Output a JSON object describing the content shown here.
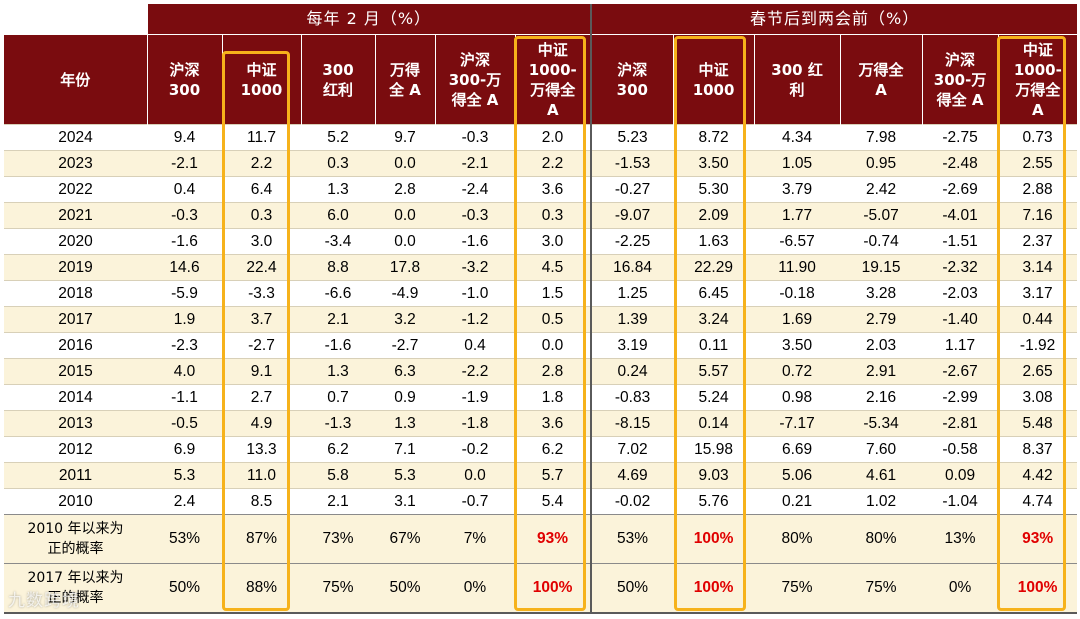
{
  "group_headers": {
    "feb": "每年 2 月（%）",
    "spring": "春节后到两会前（%）"
  },
  "year_header": "年份",
  "columns_feb": [
    "沪深\n300",
    "中证\n1000",
    "300\n红利",
    "万得\n全 A",
    "沪深\n300-万\n得全 A",
    "中证\n1000-\n万得全\nA"
  ],
  "columns_spring": [
    "沪深\n300",
    "中证\n1000",
    "300 红\n利",
    "万得全\nA",
    "沪深\n300-万\n得全 A",
    "中证\n1000-\n万得全\nA"
  ],
  "rows": [
    {
      "year": "2024",
      "feb": [
        "9.4",
        "11.7",
        "5.2",
        "9.7",
        "-0.3",
        "2.0"
      ],
      "spring": [
        "5.23",
        "8.72",
        "4.34",
        "7.98",
        "-2.75",
        "0.73"
      ]
    },
    {
      "year": "2023",
      "feb": [
        "-2.1",
        "2.2",
        "0.3",
        "0.0",
        "-2.1",
        "2.2"
      ],
      "spring": [
        "-1.53",
        "3.50",
        "1.05",
        "0.95",
        "-2.48",
        "2.55"
      ]
    },
    {
      "year": "2022",
      "feb": [
        "0.4",
        "6.4",
        "1.3",
        "2.8",
        "-2.4",
        "3.6"
      ],
      "spring": [
        "-0.27",
        "5.30",
        "3.79",
        "2.42",
        "-2.69",
        "2.88"
      ]
    },
    {
      "year": "2021",
      "feb": [
        "-0.3",
        "0.3",
        "6.0",
        "0.0",
        "-0.3",
        "0.3"
      ],
      "spring": [
        "-9.07",
        "2.09",
        "1.77",
        "-5.07",
        "-4.01",
        "7.16"
      ]
    },
    {
      "year": "2020",
      "feb": [
        "-1.6",
        "3.0",
        "-3.4",
        "0.0",
        "-1.6",
        "3.0"
      ],
      "spring": [
        "-2.25",
        "1.63",
        "-6.57",
        "-0.74",
        "-1.51",
        "2.37"
      ]
    },
    {
      "year": "2019",
      "feb": [
        "14.6",
        "22.4",
        "8.8",
        "17.8",
        "-3.2",
        "4.5"
      ],
      "spring": [
        "16.84",
        "22.29",
        "11.90",
        "19.15",
        "-2.32",
        "3.14"
      ]
    },
    {
      "year": "2018",
      "feb": [
        "-5.9",
        "-3.3",
        "-6.6",
        "-4.9",
        "-1.0",
        "1.5"
      ],
      "spring": [
        "1.25",
        "6.45",
        "-0.18",
        "3.28",
        "-2.03",
        "3.17"
      ]
    },
    {
      "year": "2017",
      "feb": [
        "1.9",
        "3.7",
        "2.1",
        "3.2",
        "-1.2",
        "0.5"
      ],
      "spring": [
        "1.39",
        "3.24",
        "1.69",
        "2.79",
        "-1.40",
        "0.44"
      ]
    },
    {
      "year": "2016",
      "feb": [
        "-2.3",
        "-2.7",
        "-1.6",
        "-2.7",
        "0.4",
        "0.0"
      ],
      "spring": [
        "3.19",
        "0.11",
        "3.50",
        "2.03",
        "1.17",
        "-1.92"
      ]
    },
    {
      "year": "2015",
      "feb": [
        "4.0",
        "9.1",
        "1.3",
        "6.3",
        "-2.2",
        "2.8"
      ],
      "spring": [
        "0.24",
        "5.57",
        "0.72",
        "2.91",
        "-2.67",
        "2.65"
      ]
    },
    {
      "year": "2014",
      "feb": [
        "-1.1",
        "2.7",
        "0.7",
        "0.9",
        "-1.9",
        "1.8"
      ],
      "spring": [
        "-0.83",
        "5.24",
        "0.98",
        "2.16",
        "-2.99",
        "3.08"
      ]
    },
    {
      "year": "2013",
      "feb": [
        "-0.5",
        "4.9",
        "-1.3",
        "1.3",
        "-1.8",
        "3.6"
      ],
      "spring": [
        "-8.15",
        "0.14",
        "-7.17",
        "-5.34",
        "-2.81",
        "5.48"
      ]
    },
    {
      "year": "2012",
      "feb": [
        "6.9",
        "13.3",
        "6.2",
        "7.1",
        "-0.2",
        "6.2"
      ],
      "spring": [
        "7.02",
        "15.98",
        "6.69",
        "7.60",
        "-0.58",
        "8.37"
      ]
    },
    {
      "year": "2011",
      "feb": [
        "5.3",
        "11.0",
        "5.8",
        "5.3",
        "0.0",
        "5.7"
      ],
      "spring": [
        "4.69",
        "9.03",
        "5.06",
        "4.61",
        "0.09",
        "4.42"
      ]
    },
    {
      "year": "2010",
      "feb": [
        "2.4",
        "8.5",
        "2.1",
        "3.1",
        "-0.7",
        "5.4"
      ],
      "spring": [
        "-0.02",
        "5.76",
        "0.21",
        "1.02",
        "-1.04",
        "4.74"
      ]
    }
  ],
  "stats": [
    {
      "label": "2010 年以来为\n正的概率",
      "feb": [
        "53%",
        "87%",
        "73%",
        "67%",
        "7%",
        "93%"
      ],
      "spring": [
        "53%",
        "100%",
        "80%",
        "80%",
        "13%",
        "93%"
      ],
      "red_feb": [
        false,
        false,
        false,
        false,
        false,
        true
      ],
      "red_spring": [
        false,
        true,
        false,
        false,
        false,
        true
      ]
    },
    {
      "label": "2017 年以来为\n正的概率",
      "feb": [
        "50%",
        "88%",
        "75%",
        "50%",
        "0%",
        "100%"
      ],
      "spring": [
        "50%",
        "100%",
        "75%",
        "75%",
        "0%",
        "100%"
      ],
      "red_feb": [
        false,
        false,
        false,
        false,
        false,
        true
      ],
      "red_spring": [
        false,
        true,
        false,
        false,
        false,
        true
      ]
    }
  ],
  "colors": {
    "header_bg": "#7a0c0f",
    "highlight_border": "#f6b21b",
    "stat_red": "#e00000",
    "alt_row": "#fbf3da"
  },
  "watermark": "九数跨境"
}
